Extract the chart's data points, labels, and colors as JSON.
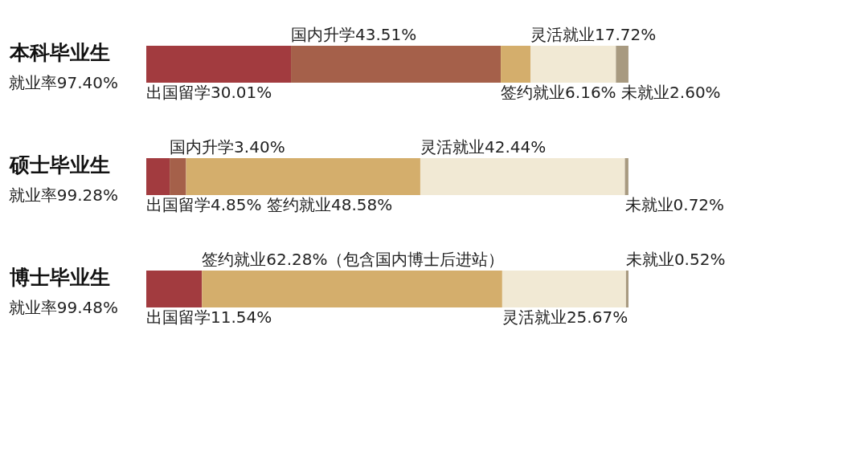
{
  "chart_data": {
    "type": "bar",
    "orientation": "horizontal",
    "stacked": true,
    "legend": false,
    "grid": false,
    "tick_labels": false,
    "categories": [
      "本科毕业生",
      "硕士毕业生",
      "博士毕业生"
    ],
    "annotations": [
      "就业率97.40%",
      "就业率99.28%",
      "就业率99.48%"
    ],
    "series": [
      {
        "name": "出国留学",
        "color": "#a23b3f",
        "values": [
          30.01,
          4.85,
          11.54
        ],
        "value_labels": [
          "30.01%",
          "4.85%",
          "11.54%"
        ]
      },
      {
        "name": "国内升学",
        "color": "#a5604a",
        "values": [
          43.51,
          3.4,
          null
        ],
        "value_labels": [
          "43.51%",
          "3.40%",
          null
        ]
      },
      {
        "name": "签约就业",
        "color": "#d4ae6c",
        "values": [
          6.16,
          48.58,
          62.28
        ],
        "value_labels": [
          "6.16%",
          "48.58%",
          "62.28%（包含国内博士后进站）"
        ]
      },
      {
        "name": "灵活就业",
        "color": "#f1e9d4",
        "values": [
          17.72,
          42.44,
          25.67
        ],
        "value_labels": [
          "17.72%",
          "42.44%",
          "25.67%"
        ]
      },
      {
        "name": "未就业",
        "color": "#a89a80",
        "values": [
          2.6,
          0.72,
          0.52
        ],
        "value_labels": [
          "2.60%",
          "0.72%",
          "0.52%"
        ]
      }
    ]
  }
}
